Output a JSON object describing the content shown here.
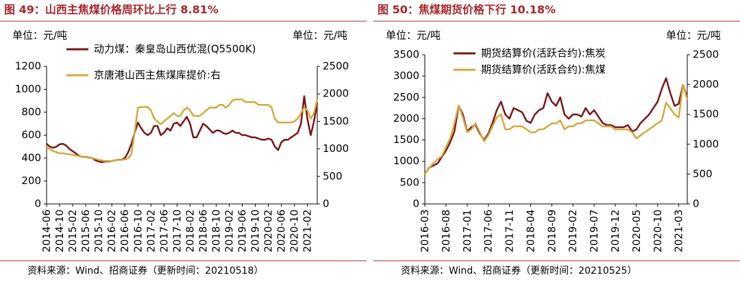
{
  "chart_data": [
    {
      "type": "line",
      "title": "图 49：山西主焦煤价格周环比上行 8.81%",
      "ylabel": "单位：元/吨",
      "y2label": "单位：元/吨",
      "source": "资料来源：Wind、招商证券（更新时间：20210518）",
      "x": [
        "2014-06",
        "2014-07",
        "2014-08",
        "2014-09",
        "2014-10",
        "2014-11",
        "2014-12",
        "2015-01",
        "2015-02",
        "2015-03",
        "2015-04",
        "2015-05",
        "2015-06",
        "2015-07",
        "2015-08",
        "2015-09",
        "2015-10",
        "2015-11",
        "2015-12",
        "2016-01",
        "2016-02",
        "2016-03",
        "2016-04",
        "2016-05",
        "2016-06",
        "2016-07",
        "2016-08",
        "2016-09",
        "2016-10",
        "2016-11",
        "2016-12",
        "2017-01",
        "2017-02",
        "2017-03",
        "2017-04",
        "2017-05",
        "2017-06",
        "2017-07",
        "2017-08",
        "2017-09",
        "2017-10",
        "2017-11",
        "2017-12",
        "2018-01",
        "2018-02",
        "2018-03",
        "2018-04",
        "2018-05",
        "2018-06",
        "2018-07",
        "2018-08",
        "2018-09",
        "2018-10",
        "2018-11",
        "2018-12",
        "2019-01",
        "2019-02",
        "2019-03",
        "2019-04",
        "2019-05",
        "2019-06",
        "2019-07",
        "2019-08",
        "2019-09",
        "2019-10",
        "2019-11",
        "2019-12",
        "2020-01",
        "2020-02",
        "2020-03",
        "2020-04",
        "2020-05",
        "2020-06",
        "2020-07",
        "2020-08",
        "2020-09",
        "2020-10",
        "2020-11",
        "2020-12",
        "2021-01",
        "2021-02",
        "2021-03",
        "2021-04",
        "2021-05"
      ],
      "xticks": [
        "2014-06",
        "2014-10",
        "2015-02",
        "2015-06",
        "2015-10",
        "2016-02",
        "2016-06",
        "2016-10",
        "2017-02",
        "2017-06",
        "2017-10",
        "2018-02",
        "2018-06",
        "2018-10",
        "2019-02",
        "2019-06",
        "2019-10",
        "2020-02",
        "2020-06",
        "2020-10",
        "2021-02"
      ],
      "ylim": [
        0,
        1200
      ],
      "yticks": [
        0,
        200,
        400,
        600,
        800,
        1000,
        1200
      ],
      "y2lim": [
        0,
        2500
      ],
      "y2ticks": [
        0,
        500,
        1000,
        1500,
        2000,
        2500
      ],
      "series": [
        {
          "name": "动力煤：秦皇岛山西优混(Q5500K)",
          "color": "#7a1416",
          "values": [
            525,
            500,
            490,
            500,
            520,
            525,
            510,
            480,
            460,
            440,
            420,
            410,
            410,
            405,
            400,
            380,
            370,
            365,
            370,
            370,
            375,
            380,
            385,
            385,
            400,
            450,
            520,
            620,
            710,
            660,
            620,
            600,
            620,
            680,
            680,
            600,
            620,
            660,
            640,
            700,
            710,
            680,
            720,
            760,
            700,
            580,
            580,
            640,
            700,
            680,
            650,
            620,
            640,
            640,
            620,
            610,
            620,
            640,
            620,
            620,
            600,
            600,
            590,
            580,
            580,
            570,
            560,
            560,
            570,
            560,
            500,
            470,
            540,
            560,
            560,
            580,
            600,
            620,
            700,
            940,
            740,
            600,
            720,
            880
          ]
        },
        {
          "name": "京唐港山西主焦煤库提价:右",
          "color": "#d4a83a",
          "axis": "y2",
          "values": [
            1030,
            1000,
            960,
            940,
            920,
            920,
            910,
            900,
            890,
            880,
            870,
            860,
            850,
            840,
            830,
            820,
            800,
            790,
            780,
            780,
            780,
            790,
            800,
            800,
            810,
            830,
            900,
            1300,
            1750,
            1760,
            1760,
            1760,
            1700,
            1550,
            1500,
            1450,
            1500,
            1550,
            1600,
            1650,
            1600,
            1600,
            1700,
            1750,
            1700,
            1600,
            1600,
            1600,
            1650,
            1700,
            1750,
            1750,
            1750,
            1800,
            1800,
            1750,
            1800,
            1880,
            1900,
            1900,
            1900,
            1850,
            1850,
            1850,
            1850,
            1800,
            1800,
            1800,
            1800,
            1750,
            1550,
            1480,
            1480,
            1480,
            1480,
            1480,
            1500,
            1550,
            1650,
            1750,
            1700,
            1550,
            1650,
            1900
          ]
        }
      ]
    },
    {
      "type": "line",
      "title": "图 50：焦煤期货价格下行 10.18%",
      "ylabel": "单位：元/吨",
      "y2label": "单位：元/吨",
      "source": "资料来源：Wind、招商证券（更新时间：20210525）",
      "x": [
        "2016-03",
        "2016-04",
        "2016-05",
        "2016-06",
        "2016-07",
        "2016-08",
        "2016-09",
        "2016-10",
        "2016-11",
        "2016-12",
        "2017-01",
        "2017-02",
        "2017-03",
        "2017-04",
        "2017-05",
        "2017-06",
        "2017-07",
        "2017-08",
        "2017-09",
        "2017-10",
        "2017-11",
        "2017-12",
        "2018-01",
        "2018-02",
        "2018-03",
        "2018-04",
        "2018-05",
        "2018-06",
        "2018-07",
        "2018-08",
        "2018-09",
        "2018-10",
        "2018-11",
        "2018-12",
        "2019-01",
        "2019-02",
        "2019-03",
        "2019-04",
        "2019-05",
        "2019-06",
        "2019-07",
        "2019-08",
        "2019-09",
        "2019-10",
        "2019-11",
        "2019-12",
        "2020-01",
        "2020-02",
        "2020-03",
        "2020-04",
        "2020-05",
        "2020-06",
        "2020-07",
        "2020-08",
        "2020-09",
        "2020-10",
        "2020-11",
        "2020-12",
        "2021-01",
        "2021-02",
        "2021-03",
        "2021-04",
        "2021-05"
      ],
      "xticks": [
        "2016-03",
        "2016-08",
        "2017-01",
        "2017-06",
        "2017-11",
        "2018-04",
        "2018-09",
        "2019-02",
        "2019-07",
        "2019-12",
        "2020-05",
        "2020-10",
        "2021-03"
      ],
      "ylim": [
        0,
        3500
      ],
      "yticks": [
        0,
        500,
        1000,
        1500,
        2000,
        2500,
        3000,
        3500
      ],
      "y2lim": [
        0,
        2500
      ],
      "y2ticks": [
        0,
        500,
        1000,
        1500,
        2000,
        2500
      ],
      "series": [
        {
          "name": "期货结算价(活跃合约):焦炭",
          "color": "#7a1416",
          "values": [
            700,
            850,
            900,
            950,
            1100,
            1250,
            1450,
            1700,
            2300,
            2100,
            1700,
            1800,
            1850,
            1650,
            1500,
            1650,
            1900,
            2200,
            2400,
            2100,
            2000,
            2250,
            2200,
            2150,
            1950,
            1900,
            2100,
            2200,
            2250,
            2600,
            2400,
            2300,
            2500,
            2100,
            2000,
            2100,
            2100,
            2050,
            2250,
            2100,
            2200,
            2050,
            1900,
            1850,
            1850,
            1800,
            1800,
            1800,
            1850,
            1700,
            1750,
            1900,
            2000,
            2100,
            2250,
            2400,
            2700,
            2950,
            2600,
            2300,
            2350,
            2800,
            2500
          ]
        },
        {
          "name": "期货结算价(活跃合约):焦煤",
          "color": "#d4a83a",
          "axis": "y2",
          "values": [
            500,
            600,
            680,
            750,
            800,
            950,
            1100,
            1350,
            1650,
            1450,
            1200,
            1250,
            1350,
            1200,
            1050,
            1150,
            1300,
            1450,
            1500,
            1250,
            1250,
            1300,
            1300,
            1300,
            1250,
            1200,
            1200,
            1250,
            1250,
            1300,
            1350,
            1350,
            1400,
            1250,
            1300,
            1300,
            1350,
            1350,
            1400,
            1400,
            1400,
            1350,
            1300,
            1300,
            1300,
            1250,
            1250,
            1250,
            1250,
            1200,
            1100,
            1150,
            1200,
            1250,
            1300,
            1350,
            1400,
            1700,
            1600,
            1500,
            1450,
            2000,
            1750
          ]
        }
      ]
    }
  ]
}
